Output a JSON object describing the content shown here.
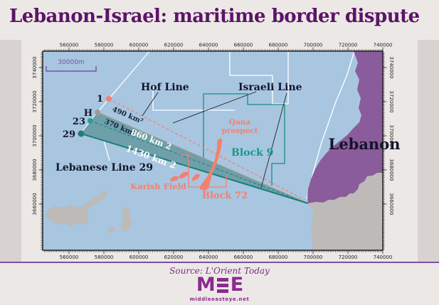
{
  "title": "Lebanon-Israel: maritime border dispute",
  "map": {
    "scale_bar_label": "30000m",
    "labels": {
      "hof_line": "Hof Line",
      "israeli_line": "Israeli Line",
      "lebanese_line_29": "Lebanese Line 29",
      "lebanon": "Lebanon",
      "block_9": "Block 9",
      "block_72": "Block 72",
      "karish_field": "Karish Field",
      "qana_line1": "Qana",
      "qana_line2": "prospect",
      "area_490": "490 km²",
      "area_370": "370 km²",
      "area_860": "860 km 2",
      "area_1430": "1430 km 2",
      "point_1": "1",
      "point_h": "H",
      "point_23": "23",
      "point_29": "29"
    },
    "colors": {
      "sea": "#a8c6e0",
      "lebanon_land": "#8a5c9b",
      "israel_land": "#bdbab7",
      "disputed_fill": "#6f9fa8",
      "teal_line": "#1b8b80",
      "salmon": "#f4806e",
      "title_purple": "#5b1467",
      "accent_purple": "#7b4fa6"
    }
  },
  "axes": {
    "x_labels": [
      "560000",
      "580000",
      "600000",
      "620000",
      "640000",
      "660000",
      "680000",
      "700000",
      "720000",
      "740000"
    ],
    "y_labels": [
      "3740000",
      "3720000",
      "3700000",
      "3680000",
      "3660000"
    ]
  },
  "footer": {
    "source": "Source: L'Orient Today",
    "logo_m": "M",
    "logo_e": "E",
    "website": "middleeasteye.net"
  }
}
